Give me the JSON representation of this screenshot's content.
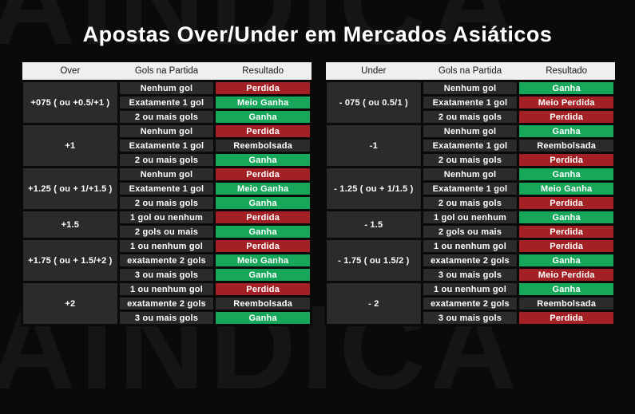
{
  "page": {
    "title": "Apostas Over/Under em Mercados Asiáticos",
    "watermark_text": "AINDICA"
  },
  "colors": {
    "win": "#17a75b",
    "loss": "#a32125",
    "refund": "#2b2b2b",
    "cell_bg": "#2b2b2b",
    "header_bg": "#efefef",
    "page_bg": "#0a0a0a",
    "text": "#ffffff"
  },
  "chart_data": [
    {
      "type": "table",
      "columns": [
        "Over",
        "Gols na Partida",
        "Resultado"
      ],
      "groups": [
        {
          "label": "+075 ( ou +0.5/+1 )",
          "rows": [
            {
              "gols": "Nenhum gol",
              "resultado": "Perdida",
              "tipo": "loss"
            },
            {
              "gols": "Exatamente 1 gol",
              "resultado": "Meio Ganha",
              "tipo": "win"
            },
            {
              "gols": "2 ou mais gols",
              "resultado": "Ganha",
              "tipo": "win"
            }
          ]
        },
        {
          "label": "+1",
          "rows": [
            {
              "gols": "Nenhum gol",
              "resultado": "Perdida",
              "tipo": "loss"
            },
            {
              "gols": "Exatamente 1 gol",
              "resultado": "Reembolsada",
              "tipo": "refund"
            },
            {
              "gols": "2 ou mais gols",
              "resultado": "Ganha",
              "tipo": "win"
            }
          ]
        },
        {
          "label": "+1.25 ( ou + 1/+1.5 )",
          "rows": [
            {
              "gols": "Nenhum gol",
              "resultado": "Perdida",
              "tipo": "loss"
            },
            {
              "gols": "Exatamente 1 gol",
              "resultado": "Meio Ganha",
              "tipo": "win"
            },
            {
              "gols": "2 ou mais gols",
              "resultado": "Ganha",
              "tipo": "win"
            }
          ]
        },
        {
          "label": "+1.5",
          "rows": [
            {
              "gols": "1 gol ou nenhum",
              "resultado": "Perdida",
              "tipo": "loss"
            },
            {
              "gols": "2 gols ou mais",
              "resultado": "Ganha",
              "tipo": "win"
            }
          ]
        },
        {
          "label": "+1.75 ( ou + 1.5/+2 )",
          "rows": [
            {
              "gols": "1 ou nenhum gol",
              "resultado": "Perdida",
              "tipo": "loss"
            },
            {
              "gols": "exatamente 2 gols",
              "resultado": "Meio Ganha",
              "tipo": "win"
            },
            {
              "gols": "3 ou mais gols",
              "resultado": "Ganha",
              "tipo": "win"
            }
          ]
        },
        {
          "label": "+2",
          "rows": [
            {
              "gols": "1 ou nenhum gol",
              "resultado": "Perdida",
              "tipo": "loss"
            },
            {
              "gols": "exatamente 2 gols",
              "resultado": "Reembolsada",
              "tipo": "refund"
            },
            {
              "gols": "3 ou mais gols",
              "resultado": "Ganha",
              "tipo": "win"
            }
          ]
        }
      ]
    },
    {
      "type": "table",
      "columns": [
        "Under",
        "Gols na Partida",
        "Resultado"
      ],
      "groups": [
        {
          "label": "- 075 ( ou 0.5/1 )",
          "rows": [
            {
              "gols": "Nenhum gol",
              "resultado": "Ganha",
              "tipo": "win"
            },
            {
              "gols": "Exatamente 1 gol",
              "resultado": "Meio Perdida",
              "tipo": "loss"
            },
            {
              "gols": "2 ou mais gols",
              "resultado": "Perdida",
              "tipo": "loss"
            }
          ]
        },
        {
          "label": "-1",
          "rows": [
            {
              "gols": "Nenhum gol",
              "resultado": "Ganha",
              "tipo": "win"
            },
            {
              "gols": "Exatamente 1 gol",
              "resultado": "Reembolsada",
              "tipo": "refund"
            },
            {
              "gols": "2 ou mais gols",
              "resultado": "Perdida",
              "tipo": "loss"
            }
          ]
        },
        {
          "label": "- 1.25 ( ou + 1/1.5 )",
          "rows": [
            {
              "gols": "Nenhum gol",
              "resultado": "Ganha",
              "tipo": "win"
            },
            {
              "gols": "Exatamente 1 gol",
              "resultado": "Meio Ganha",
              "tipo": "win"
            },
            {
              "gols": "2 ou mais gols",
              "resultado": "Perdida",
              "tipo": "loss"
            }
          ]
        },
        {
          "label": "- 1.5",
          "rows": [
            {
              "gols": "1 gol ou nenhum",
              "resultado": "Ganha",
              "tipo": "win"
            },
            {
              "gols": "2 gols ou mais",
              "resultado": "Perdida",
              "tipo": "loss"
            }
          ]
        },
        {
          "label": "- 1.75 ( ou 1.5/2 )",
          "rows": [
            {
              "gols": "1 ou nenhum gol",
              "resultado": "Perdida",
              "tipo": "loss"
            },
            {
              "gols": "exatamente 2 gols",
              "resultado": "Ganha",
              "tipo": "win"
            },
            {
              "gols": "3 ou mais gols",
              "resultado": "Meio Perdida",
              "tipo": "loss"
            }
          ]
        },
        {
          "label": "- 2",
          "rows": [
            {
              "gols": "1 ou nenhum gol",
              "resultado": "Ganha",
              "tipo": "win"
            },
            {
              "gols": "exatamente 2 gols",
              "resultado": "Reembolsada",
              "tipo": "refund"
            },
            {
              "gols": "3 ou mais gols",
              "resultado": "Perdida",
              "tipo": "loss"
            }
          ]
        }
      ]
    }
  ]
}
